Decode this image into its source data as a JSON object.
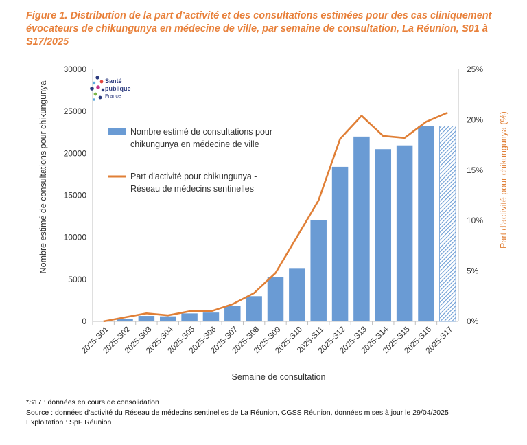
{
  "chart_data": {
    "type": "bar",
    "title": "Figure 1. Distribution de la part d’activité et des consultations estimées pour des cas cliniquement évocateurs de chikungunya en médecine de ville, par semaine de consultation, La Réunion, S01 à S17/2025",
    "xlabel": "Semaine de consultation",
    "ylabel": "Nombre estimé de consultations pour chikungunya",
    "y2label": "Part d'activité pour chikungunya (%)",
    "ylim": [
      0,
      30000
    ],
    "y2lim": [
      0,
      25
    ],
    "yticks": [
      "0",
      "5000",
      "10000",
      "15000",
      "20000",
      "25000",
      "30000"
    ],
    "y2ticks": [
      "0%",
      "5%",
      "10%",
      "15%",
      "20%",
      "25%"
    ],
    "categories": [
      "2025-S01",
      "2025-S02",
      "2025-S03",
      "2025-S04",
      "2025-S05",
      "2025-S06",
      "2025-S07",
      "2025-S08",
      "2025-S09",
      "2025-S10",
      "2025-S11",
      "2025-S12",
      "2025-S13",
      "2025-S14",
      "2025-S15",
      "2025-S16",
      "2025-S17"
    ],
    "series": [
      {
        "name": "Nombre estimé de consultations pour chikungunya en médecine de ville",
        "kind": "bar",
        "axis": "left",
        "color": "#6A9BD4",
        "values": [
          0,
          300,
          650,
          600,
          950,
          1050,
          1800,
          3000,
          5300,
          6350,
          12050,
          18400,
          22000,
          20500,
          20950,
          23250,
          23250
        ],
        "hatched_last": true
      },
      {
        "name": "Part d'activité pour chikungunya - Réseau de médecins sentinelles",
        "kind": "line",
        "axis": "right",
        "color": "#E07F36",
        "values": [
          0.0,
          0.4,
          0.8,
          0.6,
          1.0,
          1.0,
          1.7,
          2.8,
          4.8,
          8.4,
          12.0,
          18.1,
          20.4,
          18.4,
          18.2,
          19.8,
          20.7
        ]
      }
    ],
    "legend_position": "top-left"
  },
  "logo": {
    "line1": "Santé",
    "line2": "publique",
    "line3": "France"
  },
  "footnotes": {
    "note": "*S17 : données en cours de consolidation",
    "source": "Source : données d’activité du Réseau de médecins sentinelles de La Réunion, CGSS Réunion, données mises à jour le 29/04/2025",
    "exploitation": "Exploitation :  SpF Réunion"
  }
}
